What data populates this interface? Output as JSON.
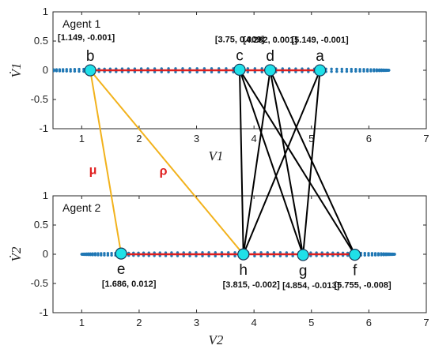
{
  "chart_data": {
    "type": "scatter",
    "panels": [
      {
        "id": "agent1",
        "label": "Agent 1",
        "xlabel": "V1",
        "ylabel": "V̇1",
        "xlim": [
          0.5,
          7
        ],
        "ylim": [
          -1,
          1
        ],
        "xticks": [
          1,
          2,
          3,
          4,
          5,
          6,
          7
        ],
        "yticks": [
          -1,
          -0.5,
          0,
          0.5,
          1
        ],
        "nodes": [
          {
            "name": "b",
            "x": 1.149,
            "y": -0.001,
            "coord": "[1.149, -0.001]"
          },
          {
            "name": "c",
            "x": 3.75,
            "y": 0.009,
            "coord": "[3.75, 0.009]"
          },
          {
            "name": "d",
            "x": 4.282,
            "y": 0.001,
            "coord": "[4.282, 0.001]"
          },
          {
            "name": "a",
            "x": 5.149,
            "y": -0.001,
            "coord": "[5.149, -0.001]"
          }
        ]
      },
      {
        "id": "agent2",
        "label": "Agent 2",
        "xlabel": "V2",
        "ylabel": "V̇2",
        "xlim": [
          0.5,
          7
        ],
        "ylim": [
          -1,
          1
        ],
        "xticks": [
          1,
          2,
          3,
          4,
          5,
          6,
          7
        ],
        "yticks": [
          -1,
          -0.5,
          0,
          0.5,
          1
        ],
        "nodes": [
          {
            "name": "e",
            "x": 1.686,
            "y": 0.012,
            "coord": "[1.686, 0.012]"
          },
          {
            "name": "h",
            "x": 3.815,
            "y": -0.002,
            "coord": "[3.815, -0.002]"
          },
          {
            "name": "g",
            "x": 4.854,
            "y": -0.013,
            "coord": "[4.854, -0.013]"
          },
          {
            "name": "f",
            "x": 5.755,
            "y": -0.008,
            "coord": "[5.755, -0.008]"
          }
        ]
      }
    ],
    "edges": [
      {
        "from": "b",
        "to": "e",
        "color": "#f2b21c",
        "label": "μ"
      },
      {
        "from": "b",
        "to": "h",
        "color": "#f2b21c",
        "label": "ρ"
      },
      {
        "from": "c",
        "to": "h",
        "color": "#000000"
      },
      {
        "from": "c",
        "to": "g",
        "color": "#000000"
      },
      {
        "from": "c",
        "to": "f",
        "color": "#000000"
      },
      {
        "from": "d",
        "to": "h",
        "color": "#000000"
      },
      {
        "from": "d",
        "to": "g",
        "color": "#000000"
      },
      {
        "from": "d",
        "to": "f",
        "color": "#000000"
      },
      {
        "from": "a",
        "to": "h",
        "color": "#000000"
      },
      {
        "from": "a",
        "to": "g",
        "color": "#000000"
      }
    ],
    "orbits": [
      {
        "panel": "agent1",
        "x_range": [
          0.3,
          6.35
        ],
        "y_half_height": 0.03,
        "dot_color": "#1f77b4"
      },
      {
        "panel": "agent2",
        "x_range": [
          1.0,
          6.45
        ],
        "y_half_height": 0.03,
        "dot_color": "#1f77b4"
      }
    ],
    "red_segments": [
      {
        "panel": "agent1",
        "x_range": [
          1.149,
          5.149
        ]
      },
      {
        "panel": "agent2",
        "x_range": [
          1.686,
          5.755
        ]
      }
    ],
    "colors": {
      "node_fill": "#1fe0e8",
      "orbit": "#1f77b4",
      "segment": "#e02020",
      "cross_edge": "#f2b21c",
      "edge": "#000000",
      "edge_label": "#e02020"
    },
    "grid": false
  }
}
